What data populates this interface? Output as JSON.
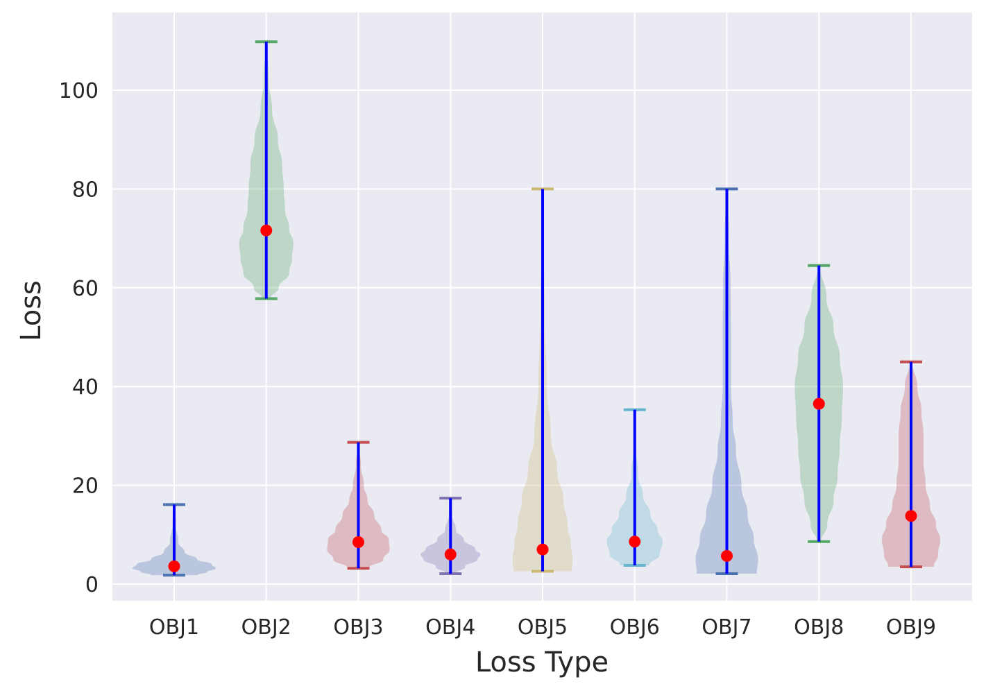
{
  "chart_data": {
    "type": "violin",
    "xlabel": "Loss Type",
    "ylabel": "Loss",
    "ylim": [
      -3,
      115
    ],
    "yticks": [
      0,
      20,
      40,
      60,
      80,
      100
    ],
    "grid": true,
    "colors": {
      "background": "#eaeaf2",
      "grid": "#ffffff",
      "range_line": "#0000ff",
      "median_marker": "#ff0000"
    },
    "categories": [
      "OBJ1",
      "OBJ2",
      "OBJ3",
      "OBJ4",
      "OBJ5",
      "OBJ6",
      "OBJ7",
      "OBJ8",
      "OBJ9"
    ],
    "series": [
      {
        "category": "OBJ1",
        "min": 1.8,
        "max": 16.1,
        "median": 3.6,
        "color": "#4c72b0",
        "density": [
          [
            1.8,
            0.55
          ],
          [
            2.5,
            0.8
          ],
          [
            3.2,
            1.0
          ],
          [
            4.0,
            0.9
          ],
          [
            5.0,
            0.55
          ],
          [
            6.5,
            0.25
          ],
          [
            8.5,
            0.1
          ],
          [
            12,
            0.04
          ],
          [
            16.1,
            0.01
          ]
        ]
      },
      {
        "category": "OBJ2",
        "min": 57.8,
        "max": 109.8,
        "median": 71.6,
        "color": "#55a868",
        "density": [
          [
            57.8,
            0.1
          ],
          [
            60,
            0.3
          ],
          [
            63,
            0.55
          ],
          [
            66,
            0.62
          ],
          [
            69,
            0.65
          ],
          [
            72,
            0.55
          ],
          [
            76,
            0.45
          ],
          [
            80,
            0.42
          ],
          [
            85,
            0.38
          ],
          [
            90,
            0.28
          ],
          [
            96,
            0.14
          ],
          [
            102,
            0.06
          ],
          [
            109.8,
            0.01
          ]
        ]
      },
      {
        "category": "OBJ3",
        "min": 3.2,
        "max": 28.7,
        "median": 8.5,
        "color": "#c44e52",
        "density": [
          [
            3.2,
            0.25
          ],
          [
            5,
            0.6
          ],
          [
            7,
            0.75
          ],
          [
            9,
            0.73
          ],
          [
            11,
            0.55
          ],
          [
            14,
            0.38
          ],
          [
            17,
            0.22
          ],
          [
            20,
            0.13
          ],
          [
            24,
            0.06
          ],
          [
            28.7,
            0.01
          ]
        ]
      },
      {
        "category": "OBJ4",
        "min": 2.1,
        "max": 17.4,
        "median": 6.0,
        "color": "#8172b2",
        "density": [
          [
            2.1,
            0.1
          ],
          [
            3.5,
            0.35
          ],
          [
            5,
            0.65
          ],
          [
            6,
            0.72
          ],
          [
            7,
            0.6
          ],
          [
            9,
            0.32
          ],
          [
            11,
            0.13
          ],
          [
            14,
            0.04
          ],
          [
            17.4,
            0.01
          ]
        ]
      },
      {
        "category": "OBJ5",
        "min": 2.6,
        "max": 80.0,
        "median": 7.0,
        "color": "#ccb974",
        "density": [
          [
            2.6,
            0.7
          ],
          [
            5,
            0.72
          ],
          [
            8,
            0.68
          ],
          [
            12,
            0.6
          ],
          [
            17,
            0.5
          ],
          [
            23,
            0.35
          ],
          [
            30,
            0.2
          ],
          [
            40,
            0.1
          ],
          [
            55,
            0.05
          ],
          [
            70,
            0.03
          ],
          [
            80,
            0.01
          ]
        ]
      },
      {
        "category": "OBJ6",
        "min": 3.8,
        "max": 35.3,
        "median": 8.6,
        "color": "#64b5cd",
        "density": [
          [
            3.8,
            0.35
          ],
          [
            6,
            0.6
          ],
          [
            8.5,
            0.67
          ],
          [
            11,
            0.55
          ],
          [
            14,
            0.38
          ],
          [
            18,
            0.2
          ],
          [
            22,
            0.08
          ],
          [
            28,
            0.03
          ],
          [
            35.3,
            0.01
          ]
        ]
      },
      {
        "category": "OBJ7",
        "min": 2.1,
        "max": 80.0,
        "median": 5.7,
        "color": "#4c72b0",
        "density": [
          [
            2.1,
            0.72
          ],
          [
            5,
            0.75
          ],
          [
            9,
            0.65
          ],
          [
            14,
            0.5
          ],
          [
            20,
            0.35
          ],
          [
            27,
            0.22
          ],
          [
            33,
            0.14
          ],
          [
            40,
            0.1
          ],
          [
            50,
            0.1
          ],
          [
            60,
            0.09
          ],
          [
            70,
            0.05
          ],
          [
            80,
            0.01
          ]
        ]
      },
      {
        "category": "OBJ8",
        "min": 8.6,
        "max": 64.5,
        "median": 36.5,
        "color": "#55a868",
        "density": [
          [
            8.6,
            0.05
          ],
          [
            12,
            0.2
          ],
          [
            17,
            0.35
          ],
          [
            22,
            0.45
          ],
          [
            28,
            0.5
          ],
          [
            34,
            0.55
          ],
          [
            40,
            0.58
          ],
          [
            46,
            0.5
          ],
          [
            52,
            0.35
          ],
          [
            58,
            0.18
          ],
          [
            64.5,
            0.03
          ]
        ]
      },
      {
        "category": "OBJ9",
        "min": 3.5,
        "max": 45.0,
        "median": 13.8,
        "color": "#c44e52",
        "density": [
          [
            3.5,
            0.55
          ],
          [
            6,
            0.65
          ],
          [
            9,
            0.7
          ],
          [
            12,
            0.6
          ],
          [
            16,
            0.45
          ],
          [
            20,
            0.35
          ],
          [
            25,
            0.3
          ],
          [
            30,
            0.3
          ],
          [
            35,
            0.25
          ],
          [
            40,
            0.15
          ],
          [
            45,
            0.03
          ]
        ]
      }
    ]
  }
}
